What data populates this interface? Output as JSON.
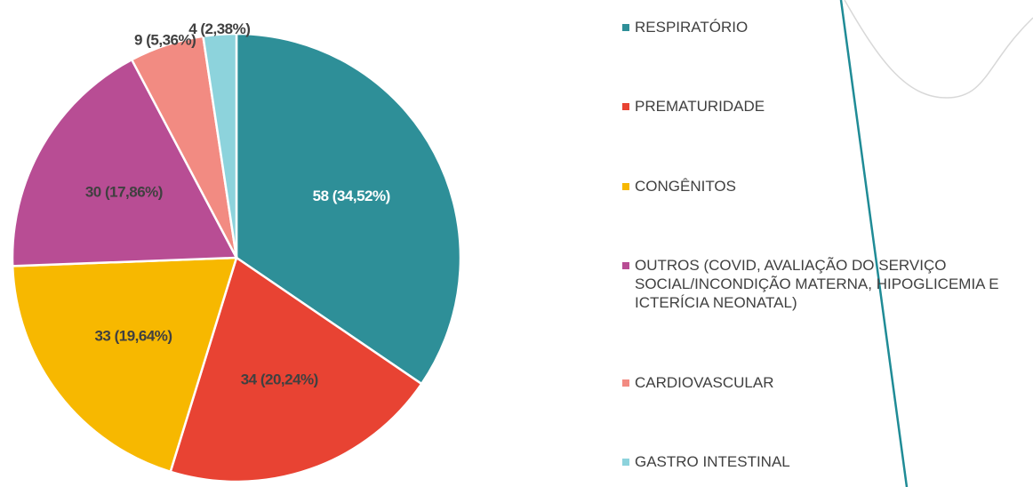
{
  "chart_data": {
    "type": "pie",
    "categories": [
      "RESPIRATÓRIO",
      "PREMATURIDADE",
      "CONGÊNITOS",
      "OUTROS (COVID, AVALIAÇÃO DO SERVIÇO SOCIAL/INCONDIÇÃO MATERNA, HIPOGLICEMIA E ICTERÍCIA NEONATAL)",
      "CARDIOVASCULAR",
      "GASTRO INTESTINAL"
    ],
    "values": [
      58,
      34,
      33,
      30,
      9,
      4
    ],
    "value_labels": [
      "58 (34,52%)",
      "34 (20,24%)",
      "33 (19,64%)",
      "30 (17,86%)",
      "9 (5,36%)",
      "4 (2,38%)"
    ],
    "colors": [
      "#2e8f98",
      "#e84333",
      "#f7b800",
      "#b84d94",
      "#f28b82",
      "#8dd3dc"
    ],
    "legend": "right"
  }
}
